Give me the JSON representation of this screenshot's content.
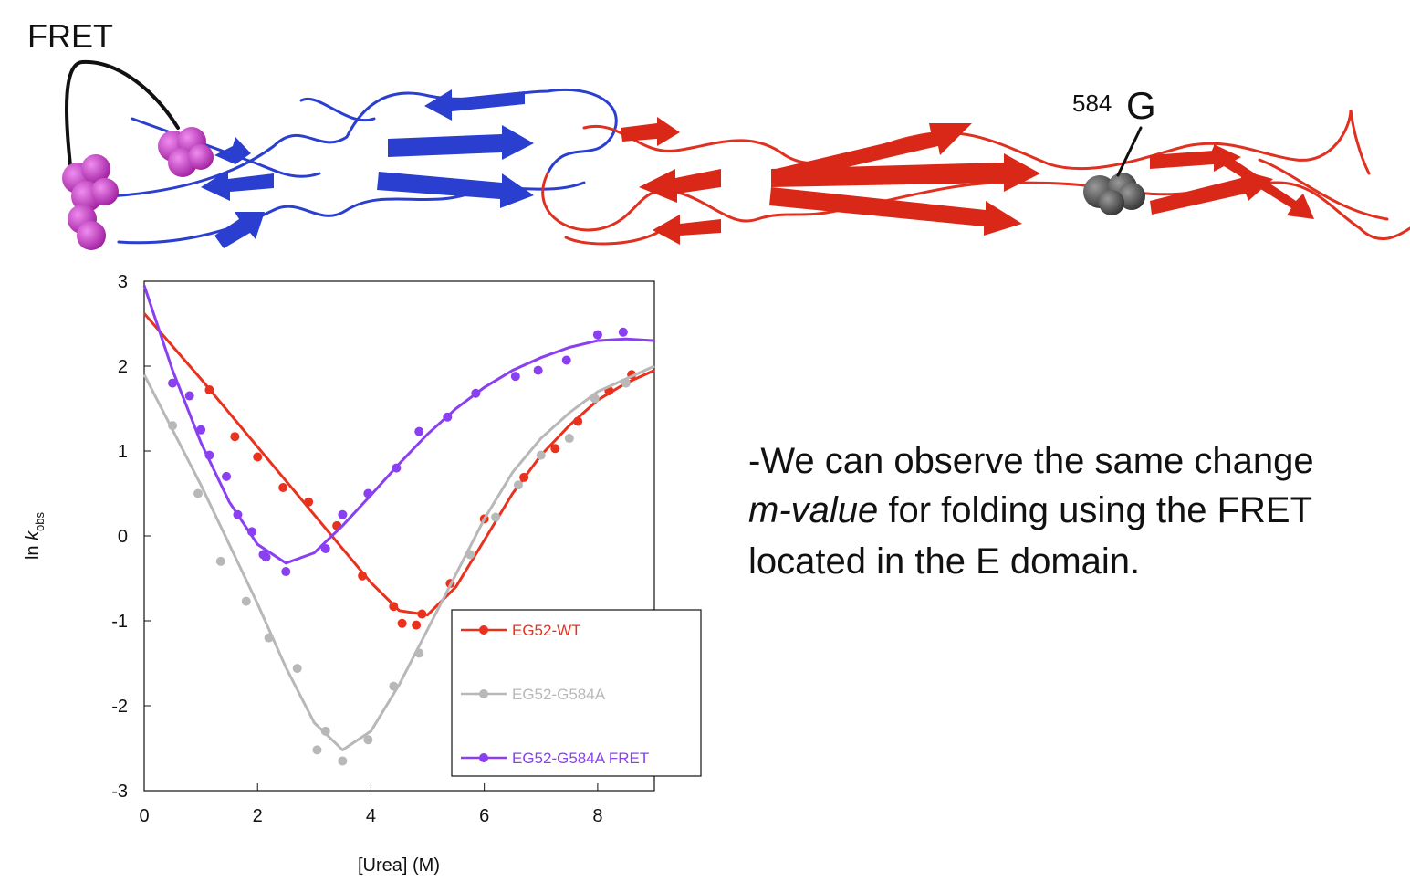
{
  "structure": {
    "fret_label": "FRET",
    "residue_number": "584",
    "residue": "G"
  },
  "note": {
    "line1": "-We can observe the same change",
    "line2_italic": "m-value",
    "line2_rest": " for folding using the FRET",
    "line3": "located in the E domain."
  },
  "chart_data": {
    "type": "scatter",
    "x_label": "[Urea] (M)",
    "y_label": {
      "prefix": "ln ",
      "italic": "k",
      "subscript": "obs"
    },
    "xlim": [
      0,
      9
    ],
    "xticks": [
      0,
      2,
      4,
      6,
      8
    ],
    "ylim": [
      -3,
      3
    ],
    "yticks": [
      -3,
      -2,
      -1,
      0,
      1,
      2,
      3
    ],
    "series": [
      {
        "name": "EG52-WT",
        "color": "#e8321e",
        "x": [
          1.15,
          1.6,
          2.0,
          2.45,
          2.9,
          3.4,
          3.85,
          4.4,
          4.55,
          4.8,
          4.9,
          5.4,
          6.0,
          6.7,
          7.25,
          7.65,
          8.2,
          8.6
        ],
        "values": [
          1.72,
          1.17,
          0.93,
          0.57,
          0.4,
          0.12,
          -0.47,
          -0.83,
          -1.03,
          -1.05,
          -0.92,
          -0.56,
          0.2,
          0.69,
          1.03,
          1.35,
          1.71,
          1.9
        ],
        "fit_x": [
          0,
          1,
          2,
          3,
          4,
          4.5,
          5,
          5.5,
          6,
          6.5,
          7,
          7.5,
          8,
          8.5,
          9
        ],
        "fit_values": [
          2.62,
          1.85,
          1.05,
          0.25,
          -0.55,
          -0.88,
          -0.93,
          -0.6,
          -0.05,
          0.5,
          0.95,
          1.3,
          1.6,
          1.8,
          1.95
        ]
      },
      {
        "name": "EG52-G584A",
        "color": "#b8b8b8",
        "x": [
          0.5,
          0.95,
          1.35,
          1.8,
          2.2,
          2.7,
          3.05,
          3.2,
          3.5,
          3.95,
          4.4,
          4.85,
          5.75,
          6.2,
          6.6,
          7.0,
          7.5,
          7.95,
          8.5
        ],
        "values": [
          1.3,
          0.5,
          -0.3,
          -0.77,
          -1.2,
          -1.56,
          -2.52,
          -2.3,
          -2.65,
          -2.4,
          -1.77,
          -1.38,
          -0.22,
          0.22,
          0.6,
          0.95,
          1.15,
          1.62,
          1.8
        ],
        "fit_x": [
          0,
          0.5,
          1,
          1.5,
          2,
          2.5,
          3,
          3.5,
          4,
          4.5,
          5,
          5.5,
          6,
          6.5,
          7,
          7.5,
          8,
          8.5,
          9
        ],
        "fit_values": [
          1.9,
          1.25,
          0.6,
          -0.1,
          -0.8,
          -1.55,
          -2.2,
          -2.52,
          -2.3,
          -1.75,
          -1.1,
          -0.45,
          0.2,
          0.75,
          1.15,
          1.45,
          1.7,
          1.85,
          2.0
        ]
      },
      {
        "name": "EG52-G584A FRET",
        "color": "#8a3ff0",
        "x": [
          0.5,
          0.8,
          1.0,
          1.15,
          1.45,
          1.65,
          1.9,
          2.1,
          2.15,
          2.5,
          3.2,
          3.5,
          3.95,
          4.45,
          4.85,
          5.35,
          5.85,
          6.55,
          6.95,
          7.45,
          8.0,
          8.45
        ],
        "values": [
          1.8,
          1.65,
          1.25,
          0.95,
          0.7,
          0.25,
          0.05,
          -0.22,
          -0.25,
          -0.42,
          -0.15,
          0.25,
          0.5,
          0.8,
          1.23,
          1.4,
          1.68,
          1.88,
          1.95,
          2.07,
          2.37,
          2.4
        ],
        "fit_x": [
          0,
          0.5,
          1,
          1.5,
          2,
          2.5,
          3,
          3.5,
          4,
          4.5,
          5,
          5.5,
          6,
          6.5,
          7,
          7.5,
          8,
          8.5,
          9
        ],
        "fit_values": [
          2.95,
          1.95,
          1.1,
          0.4,
          -0.1,
          -0.32,
          -0.2,
          0.12,
          0.48,
          0.85,
          1.2,
          1.5,
          1.75,
          1.95,
          2.1,
          2.22,
          2.3,
          2.32,
          2.3
        ]
      }
    ]
  }
}
